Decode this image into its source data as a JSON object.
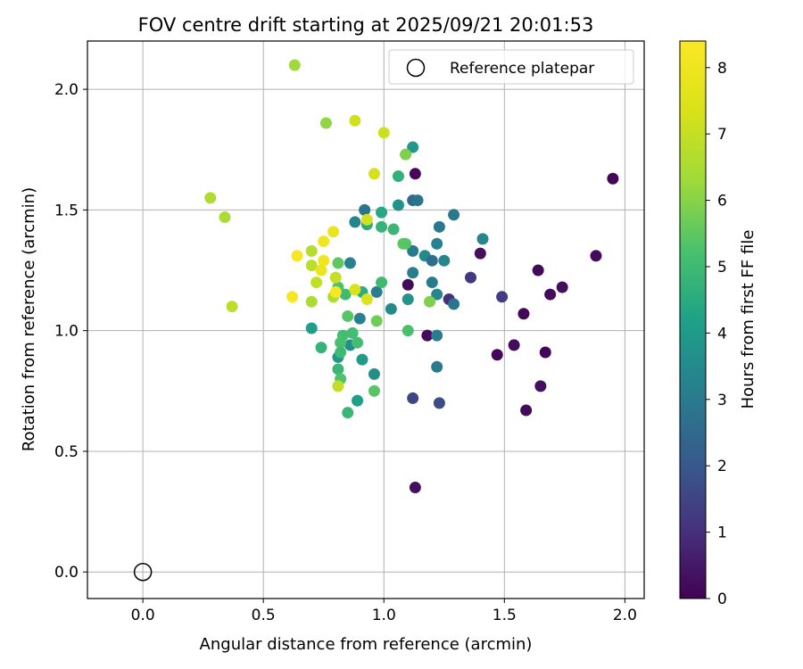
{
  "chart_data": {
    "type": "scatter",
    "title": "FOV centre drift starting at 2025/09/21 20:01:53",
    "xlabel": "Angular distance from reference (arcmin)",
    "ylabel": "Rotation from reference (arcmin)",
    "xlim": [
      -0.23,
      2.08
    ],
    "ylim": [
      -0.11,
      2.2
    ],
    "xticks": [
      0.0,
      0.5,
      1.0,
      1.5,
      2.0
    ],
    "xtick_labels": [
      "0.0",
      "0.5",
      "1.0",
      "1.5",
      "2.0"
    ],
    "yticks": [
      0.0,
      0.5,
      1.0,
      1.5,
      2.0
    ],
    "ytick_labels": [
      "0.0",
      "0.5",
      "1.0",
      "1.5",
      "2.0"
    ],
    "grid": true,
    "legend": {
      "position": "top-right",
      "entries": [
        {
          "label": "Reference platepar",
          "marker": "open-circle"
        }
      ]
    },
    "reference_point": {
      "x": 0.0,
      "y": 0.0
    },
    "colorbar": {
      "label": "Hours from first FF file",
      "range": [
        0,
        8.4
      ],
      "ticks": [
        0,
        1,
        2,
        3,
        4,
        5,
        6,
        7,
        8
      ],
      "tick_labels": [
        "0",
        "1",
        "2",
        "3",
        "4",
        "5",
        "6",
        "7",
        "8"
      ],
      "colormap": "viridis"
    },
    "points": [
      {
        "x": 1.13,
        "y": 1.65,
        "c": 0.1
      },
      {
        "x": 1.1,
        "y": 1.19,
        "c": 0.2
      },
      {
        "x": 1.13,
        "y": 0.35,
        "c": 0.3
      },
      {
        "x": 1.18,
        "y": 0.98,
        "c": 0.2
      },
      {
        "x": 1.4,
        "y": 1.32,
        "c": 0.3
      },
      {
        "x": 1.47,
        "y": 0.9,
        "c": 0.1
      },
      {
        "x": 1.54,
        "y": 0.94,
        "c": 0.2
      },
      {
        "x": 1.58,
        "y": 1.07,
        "c": 0.1
      },
      {
        "x": 1.59,
        "y": 0.67,
        "c": 0.2
      },
      {
        "x": 1.64,
        "y": 1.25,
        "c": 0.2
      },
      {
        "x": 1.65,
        "y": 0.77,
        "c": 0.3
      },
      {
        "x": 1.67,
        "y": 0.91,
        "c": 0.1
      },
      {
        "x": 1.69,
        "y": 1.15,
        "c": 0.2
      },
      {
        "x": 1.74,
        "y": 1.18,
        "c": 0.3
      },
      {
        "x": 1.88,
        "y": 1.31,
        "c": 0.2
      },
      {
        "x": 1.95,
        "y": 1.63,
        "c": 0.1
      },
      {
        "x": 1.12,
        "y": 0.72,
        "c": 1.5
      },
      {
        "x": 1.23,
        "y": 0.7,
        "c": 1.7
      },
      {
        "x": 1.27,
        "y": 1.13,
        "c": 1.0
      },
      {
        "x": 1.36,
        "y": 1.22,
        "c": 1.2
      },
      {
        "x": 1.49,
        "y": 1.14,
        "c": 1.3
      },
      {
        "x": 1.12,
        "y": 1.54,
        "c": 2.5
      },
      {
        "x": 1.14,
        "y": 1.54,
        "c": 2.8
      },
      {
        "x": 0.92,
        "y": 1.5,
        "c": 2.8
      },
      {
        "x": 1.29,
        "y": 1.48,
        "c": 2.9
      },
      {
        "x": 0.88,
        "y": 1.45,
        "c": 3.3
      },
      {
        "x": 1.23,
        "y": 1.43,
        "c": 2.9
      },
      {
        "x": 1.41,
        "y": 1.38,
        "c": 3.4
      },
      {
        "x": 1.22,
        "y": 1.36,
        "c": 3.2
      },
      {
        "x": 1.12,
        "y": 1.33,
        "c": 3.0
      },
      {
        "x": 1.17,
        "y": 1.31,
        "c": 3.5
      },
      {
        "x": 1.2,
        "y": 1.29,
        "c": 2.6
      },
      {
        "x": 0.86,
        "y": 1.28,
        "c": 3.2
      },
      {
        "x": 1.25,
        "y": 1.29,
        "c": 3.3
      },
      {
        "x": 1.12,
        "y": 1.24,
        "c": 3.1
      },
      {
        "x": 1.2,
        "y": 1.2,
        "c": 3.0
      },
      {
        "x": 0.97,
        "y": 1.16,
        "c": 3.1
      },
      {
        "x": 1.22,
        "y": 1.15,
        "c": 3.4
      },
      {
        "x": 1.1,
        "y": 1.13,
        "c": 3.8
      },
      {
        "x": 1.29,
        "y": 1.11,
        "c": 2.8
      },
      {
        "x": 1.03,
        "y": 1.09,
        "c": 3.5
      },
      {
        "x": 0.9,
        "y": 1.05,
        "c": 3.2
      },
      {
        "x": 1.22,
        "y": 0.98,
        "c": 3.1
      },
      {
        "x": 0.86,
        "y": 0.94,
        "c": 3.6
      },
      {
        "x": 0.91,
        "y": 0.88,
        "c": 4.0
      },
      {
        "x": 0.81,
        "y": 0.89,
        "c": 3.8
      },
      {
        "x": 1.22,
        "y": 0.85,
        "c": 3.0
      },
      {
        "x": 0.96,
        "y": 0.82,
        "c": 3.6
      },
      {
        "x": 0.89,
        "y": 0.71,
        "c": 4.2
      },
      {
        "x": 1.06,
        "y": 1.52,
        "c": 3.8
      },
      {
        "x": 0.7,
        "y": 1.01,
        "c": 4.1
      },
      {
        "x": 1.12,
        "y": 1.76,
        "c": 3.9
      },
      {
        "x": 0.99,
        "y": 1.49,
        "c": 4.4
      },
      {
        "x": 0.93,
        "y": 1.44,
        "c": 4.5
      },
      {
        "x": 1.06,
        "y": 1.64,
        "c": 4.7
      },
      {
        "x": 0.99,
        "y": 1.43,
        "c": 4.8
      },
      {
        "x": 1.04,
        "y": 1.42,
        "c": 4.9
      },
      {
        "x": 1.08,
        "y": 1.36,
        "c": 5.5
      },
      {
        "x": 1.09,
        "y": 1.36,
        "c": 5.4
      },
      {
        "x": 0.81,
        "y": 1.28,
        "c": 5.5
      },
      {
        "x": 0.99,
        "y": 1.2,
        "c": 5.0
      },
      {
        "x": 0.91,
        "y": 1.16,
        "c": 4.6
      },
      {
        "x": 0.84,
        "y": 1.15,
        "c": 5.0
      },
      {
        "x": 0.81,
        "y": 1.18,
        "c": 5.3
      },
      {
        "x": 1.19,
        "y": 1.12,
        "c": 5.9
      },
      {
        "x": 0.85,
        "y": 1.06,
        "c": 5.4
      },
      {
        "x": 0.97,
        "y": 1.04,
        "c": 5.7
      },
      {
        "x": 1.1,
        "y": 1.0,
        "c": 5.2
      },
      {
        "x": 0.83,
        "y": 0.98,
        "c": 5.1
      },
      {
        "x": 0.87,
        "y": 0.99,
        "c": 5.1
      },
      {
        "x": 0.82,
        "y": 0.95,
        "c": 5.2
      },
      {
        "x": 0.74,
        "y": 0.93,
        "c": 4.8
      },
      {
        "x": 0.89,
        "y": 0.95,
        "c": 5.1
      },
      {
        "x": 0.82,
        "y": 0.91,
        "c": 5.0
      },
      {
        "x": 0.81,
        "y": 0.84,
        "c": 4.9
      },
      {
        "x": 0.82,
        "y": 0.8,
        "c": 5.3
      },
      {
        "x": 0.96,
        "y": 0.75,
        "c": 5.4
      },
      {
        "x": 0.85,
        "y": 0.66,
        "c": 4.9
      },
      {
        "x": 1.09,
        "y": 1.73,
        "c": 5.9
      },
      {
        "x": 0.76,
        "y": 1.86,
        "c": 6.1
      },
      {
        "x": 0.63,
        "y": 2.1,
        "c": 6.3
      },
      {
        "x": 0.28,
        "y": 1.55,
        "c": 6.6
      },
      {
        "x": 0.34,
        "y": 1.47,
        "c": 6.5
      },
      {
        "x": 0.37,
        "y": 1.1,
        "c": 6.8
      },
      {
        "x": 0.7,
        "y": 1.33,
        "c": 6.7
      },
      {
        "x": 0.7,
        "y": 1.27,
        "c": 6.8
      },
      {
        "x": 0.72,
        "y": 1.2,
        "c": 6.9
      },
      {
        "x": 0.79,
        "y": 1.14,
        "c": 6.6
      },
      {
        "x": 0.7,
        "y": 1.12,
        "c": 6.5
      },
      {
        "x": 0.8,
        "y": 1.22,
        "c": 7.0
      },
      {
        "x": 0.81,
        "y": 0.77,
        "c": 6.9
      },
      {
        "x": 0.88,
        "y": 1.87,
        "c": 7.2
      },
      {
        "x": 1.0,
        "y": 1.82,
        "c": 7.1
      },
      {
        "x": 0.96,
        "y": 1.65,
        "c": 7.3
      },
      {
        "x": 0.93,
        "y": 1.46,
        "c": 7.2
      },
      {
        "x": 0.88,
        "y": 1.17,
        "c": 7.4
      },
      {
        "x": 0.93,
        "y": 1.13,
        "c": 7.5
      },
      {
        "x": 0.79,
        "y": 1.41,
        "c": 7.9
      },
      {
        "x": 0.75,
        "y": 1.37,
        "c": 8.0
      },
      {
        "x": 0.64,
        "y": 1.31,
        "c": 8.2
      },
      {
        "x": 0.75,
        "y": 1.29,
        "c": 8.0
      },
      {
        "x": 0.74,
        "y": 1.25,
        "c": 7.9
      },
      {
        "x": 0.8,
        "y": 1.16,
        "c": 8.3
      },
      {
        "x": 0.62,
        "y": 1.14,
        "c": 8.2
      }
    ]
  }
}
